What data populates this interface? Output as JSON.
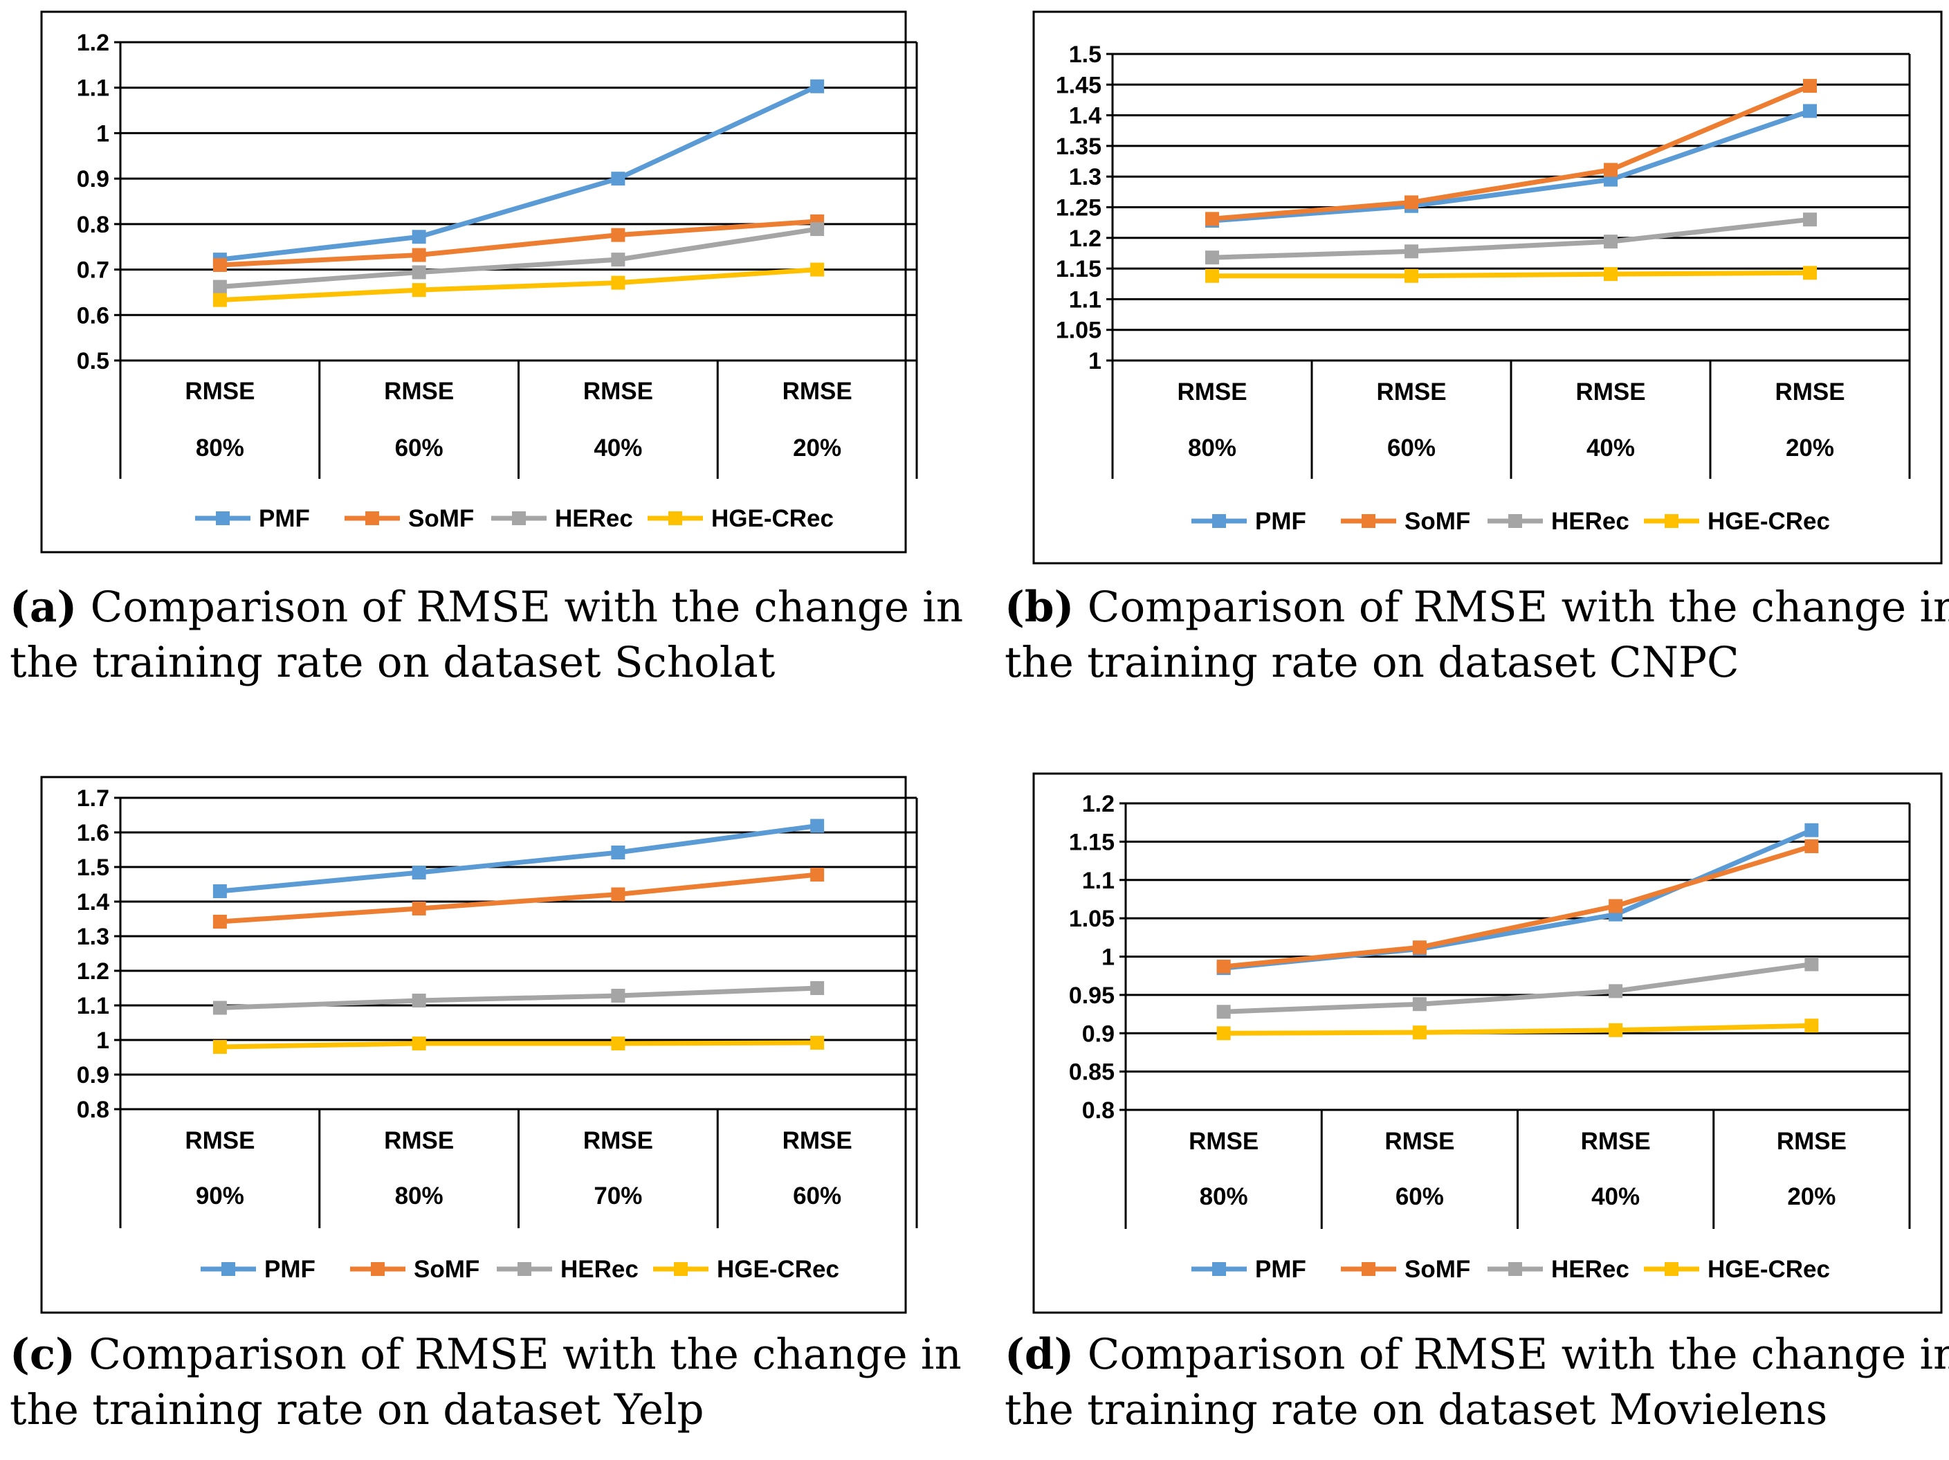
{
  "legend": [
    "PMF",
    "SoMF",
    "HERec",
    "HGE-CRec"
  ],
  "series_colors": [
    "#5B9BD5",
    "#ED7D31",
    "#A5A5A5",
    "#FFC000"
  ],
  "chart_data": [
    {
      "type": "line",
      "categories": [
        "80%",
        "60%",
        "40%",
        "20%"
      ],
      "category_group_label": "RMSE",
      "ylim": [
        0.5,
        1.2
      ],
      "yticks": [
        0.5,
        0.6,
        0.7,
        0.8,
        0.9,
        1,
        1.1,
        1.2
      ],
      "ytick_labels": [
        "0.5",
        "0.6",
        "0.7",
        "0.8",
        "0.9",
        "1",
        "1.1",
        "1.2"
      ],
      "series": [
        {
          "name": "PMF",
          "values": [
            0.722,
            0.772,
            0.9,
            1.103
          ]
        },
        {
          "name": "SoMF",
          "values": [
            0.71,
            0.732,
            0.776,
            0.806
          ]
        },
        {
          "name": "HERec",
          "values": [
            0.662,
            0.694,
            0.722,
            0.789
          ]
        },
        {
          "name": "HGE-CRec",
          "values": [
            0.633,
            0.655,
            0.671,
            0.7
          ]
        }
      ],
      "caption_letter": "(a)",
      "caption_line1": "Comparison of RMSE with the change in",
      "caption_line2": "the training rate on dataset Scholat"
    },
    {
      "type": "line",
      "categories": [
        "80%",
        "60%",
        "40%",
        "20%"
      ],
      "category_group_label": "RMSE",
      "ylim": [
        1,
        1.5
      ],
      "yticks": [
        1,
        1.05,
        1.1,
        1.15,
        1.2,
        1.25,
        1.3,
        1.35,
        1.4,
        1.45,
        1.5
      ],
      "ytick_labels": [
        "1",
        "1.05",
        "1.1",
        "1.15",
        "1.2",
        "1.25",
        "1.3",
        "1.35",
        "1.4",
        "1.45",
        "1.5"
      ],
      "series": [
        {
          "name": "PMF",
          "values": [
            1.228,
            1.252,
            1.295,
            1.407
          ]
        },
        {
          "name": "SoMF",
          "values": [
            1.231,
            1.258,
            1.311,
            1.448
          ]
        },
        {
          "name": "HERec",
          "values": [
            1.168,
            1.178,
            1.194,
            1.23
          ]
        },
        {
          "name": "HGE-CRec",
          "values": [
            1.138,
            1.138,
            1.141,
            1.143
          ]
        }
      ],
      "caption_letter": "(b)",
      "caption_line1": "Comparison of RMSE with the change in",
      "caption_line2": "the training rate on dataset CNPC"
    },
    {
      "type": "line",
      "categories": [
        "90%",
        "80%",
        "70%",
        "60%"
      ],
      "category_group_label": "RMSE",
      "ylim": [
        0.8,
        1.7
      ],
      "yticks": [
        0.8,
        0.9,
        1,
        1.1,
        1.2,
        1.3,
        1.4,
        1.5,
        1.6,
        1.7
      ],
      "ytick_labels": [
        "0.8",
        "0.9",
        "1",
        "1.1",
        "1.2",
        "1.3",
        "1.4",
        "1.5",
        "1.6",
        "1.7"
      ],
      "series": [
        {
          "name": "PMF",
          "values": [
            1.43,
            1.484,
            1.542,
            1.619
          ]
        },
        {
          "name": "SoMF",
          "values": [
            1.342,
            1.38,
            1.421,
            1.478
          ]
        },
        {
          "name": "HERec",
          "values": [
            1.093,
            1.114,
            1.128,
            1.15
          ]
        },
        {
          "name": "HGE-CRec",
          "values": [
            0.98,
            0.99,
            0.99,
            0.992
          ]
        }
      ],
      "caption_letter": "(c)",
      "caption_line1": "Comparison of RMSE with the change in",
      "caption_line2": "the training rate on dataset Yelp"
    },
    {
      "type": "line",
      "categories": [
        "80%",
        "60%",
        "40%",
        "20%"
      ],
      "category_group_label": "RMSE",
      "ylim": [
        0.8,
        1.2
      ],
      "yticks": [
        0.8,
        0.85,
        0.9,
        0.95,
        1,
        1.05,
        1.1,
        1.15,
        1.2
      ],
      "ytick_labels": [
        "0.8",
        "0.85",
        "0.9",
        "0.95",
        "1",
        "1.05",
        "1.1",
        "1.15",
        "1.2"
      ],
      "series": [
        {
          "name": "PMF",
          "values": [
            0.985,
            1.01,
            1.055,
            1.165
          ]
        },
        {
          "name": "SoMF",
          "values": [
            0.987,
            1.012,
            1.066,
            1.144
          ]
        },
        {
          "name": "HERec",
          "values": [
            0.928,
            0.938,
            0.955,
            0.99
          ]
        },
        {
          "name": "HGE-CRec",
          "values": [
            0.9,
            0.901,
            0.904,
            0.91
          ]
        }
      ],
      "caption_letter": "(d)",
      "caption_line1": "Comparison of RMSE with the change in",
      "caption_line2": "the training rate on dataset Movielens"
    }
  ]
}
